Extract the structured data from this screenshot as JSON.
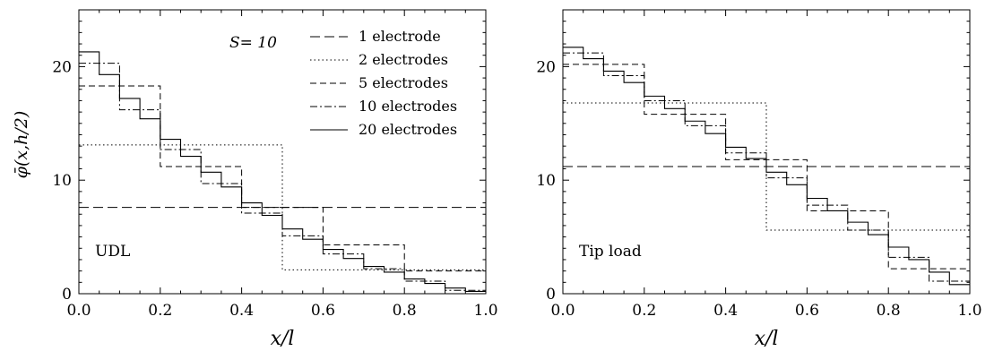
{
  "chart_data": [
    {
      "type": "line",
      "step": true,
      "xlabel": "x/l",
      "ylabel": "φ̄(x,h/2)",
      "xlim": [
        0.0,
        1.0
      ],
      "ylim": [
        0,
        25
      ],
      "xticks": [
        "0.0",
        "0.2",
        "0.4",
        "0.6",
        "0.8",
        "1.0"
      ],
      "yticks": [
        "0",
        "10",
        "20"
      ],
      "annotations": [
        "UDL",
        "S= 10"
      ],
      "legend": "top-right",
      "series": [
        {
          "name": "1 electrode",
          "style": "long-dash",
          "values": [
            7.6
          ]
        },
        {
          "name": "2 electrodes",
          "style": "dotted",
          "values": [
            13.1,
            2.1
          ]
        },
        {
          "name": "5 electrodes",
          "style": "dashed",
          "values": [
            18.3,
            11.2,
            7.6,
            4.3,
            2.0
          ]
        },
        {
          "name": "10 electrodes",
          "style": "dash-dot",
          "values": [
            20.3,
            16.2,
            12.7,
            9.7,
            7.1,
            5.1,
            3.5,
            2.2,
            1.1,
            0.3
          ]
        },
        {
          "name": "20 electrodes",
          "style": "solid",
          "values": [
            21.3,
            19.3,
            17.2,
            15.4,
            13.6,
            12.1,
            10.7,
            9.4,
            8.0,
            6.9,
            5.7,
            4.8,
            3.9,
            3.1,
            2.4,
            1.9,
            1.3,
            0.9,
            0.5,
            0.2
          ]
        }
      ]
    },
    {
      "type": "line",
      "step": true,
      "xlabel": "x/l",
      "xlim": [
        0.0,
        1.0
      ],
      "ylim": [
        0,
        25
      ],
      "xticks": [
        "0.0",
        "0.2",
        "0.4",
        "0.6",
        "0.8",
        "1.0"
      ],
      "yticks": [
        "0",
        "10",
        "20"
      ],
      "annotations": [
        "Tip load"
      ],
      "series": [
        {
          "name": "1 electrode",
          "style": "long-dash",
          "values": [
            11.2
          ]
        },
        {
          "name": "2 electrodes",
          "style": "dotted",
          "values": [
            16.8,
            5.6
          ]
        },
        {
          "name": "5 electrodes",
          "style": "dashed",
          "values": [
            20.2,
            15.8,
            11.8,
            7.3,
            2.2
          ]
        },
        {
          "name": "10 electrodes",
          "style": "dash-dot",
          "values": [
            21.2,
            19.2,
            17.0,
            14.8,
            12.4,
            10.2,
            7.8,
            5.6,
            3.2,
            1.1
          ]
        },
        {
          "name": "20 electrodes",
          "style": "solid",
          "values": [
            21.7,
            20.7,
            19.6,
            18.6,
            17.4,
            16.3,
            15.2,
            14.1,
            12.9,
            11.9,
            10.7,
            9.6,
            8.4,
            7.3,
            6.3,
            5.2,
            4.1,
            3.0,
            1.9,
            0.8
          ]
        }
      ]
    }
  ]
}
